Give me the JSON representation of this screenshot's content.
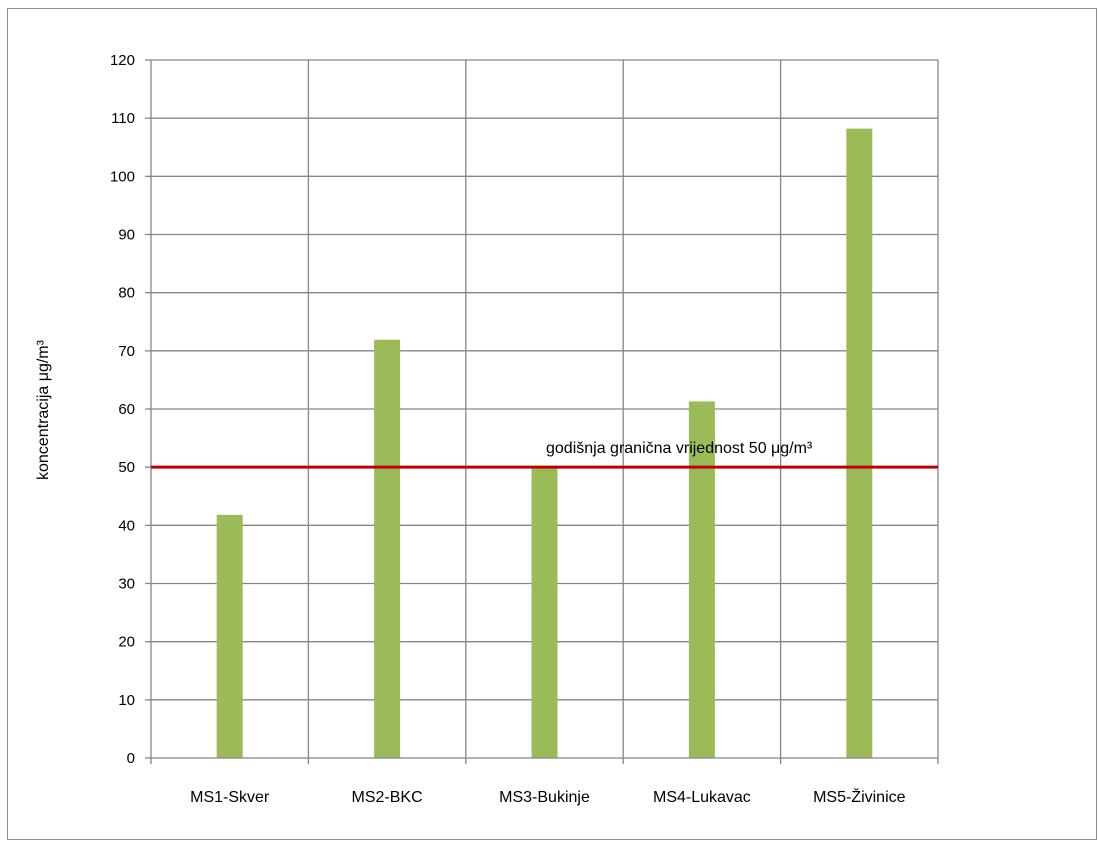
{
  "chart_data": {
    "type": "bar",
    "categories": [
      "MS1-Skver",
      "MS2-BKC",
      "MS3-Bukinje",
      "MS4-Lukavac",
      "MS5-Živinice"
    ],
    "values": [
      41.8,
      71.9,
      50.1,
      61.3,
      108.2
    ],
    "ylabel": "koncentracija μg/m³",
    "xlabel": "",
    "ylim": [
      0,
      120
    ],
    "ytick_step": 10,
    "grid": true,
    "legend": "none",
    "reference_line": {
      "value": 50,
      "label": "godišnja granična vrijednost 50 μg/m³",
      "color": "#c00000"
    },
    "bar_color": "#9bbb59",
    "grid_color": "#868686"
  }
}
